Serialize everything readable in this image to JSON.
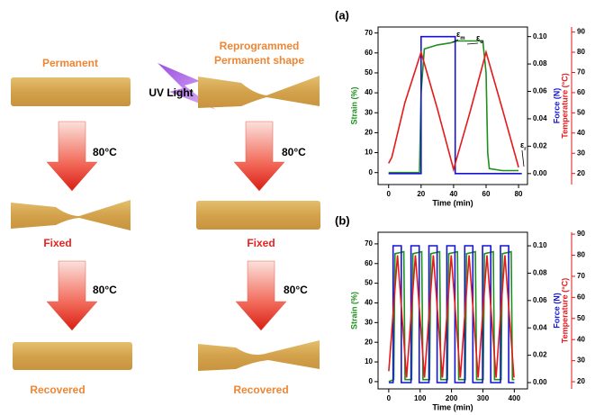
{
  "figure": {
    "permanent": "Permanent",
    "reprogrammed": [
      "Reprogrammed",
      "Permanent shape"
    ],
    "uv": "UV Light",
    "steps": [
      "80°C",
      "80°C",
      "80°C",
      "80°C"
    ],
    "fixed": [
      "Fixed",
      "Fixed"
    ],
    "recovered": [
      "Recovered",
      "Recovered"
    ]
  },
  "chart_data": [
    {
      "type": "line",
      "panel": "(a)",
      "xlabel": "Time (min)",
      "ylabel": "Strain (%)",
      "y2label": "Force (N)",
      "y3label": "Temperature (°C)",
      "xlim": [
        -6.5,
        85.5
      ],
      "xticks": [
        0,
        20,
        40,
        60,
        80
      ],
      "ylim": [
        -6,
        73
      ],
      "yticks": [
        0,
        10,
        20,
        30,
        40,
        50,
        60,
        70
      ],
      "y2lim": [
        -0.008,
        0.107
      ],
      "y2ticks": [
        {
          "value": 0,
          "label": "0.00"
        },
        {
          "value": 0.02,
          "label": "0.02"
        },
        {
          "value": 0.04,
          "label": "0.04"
        },
        {
          "value": 0.06,
          "label": "0.06"
        },
        {
          "value": 0.08,
          "label": "0.08"
        },
        {
          "value": 0.1,
          "label": "0.10"
        }
      ],
      "y3lim": [
        14.5,
        92.5
      ],
      "y3ticks": [
        20,
        30,
        40,
        50,
        60,
        70,
        80,
        90
      ],
      "series": [
        {
          "color": "#1f8f1f",
          "axis": "y",
          "x": [
            0,
            10,
            19,
            20,
            22,
            30,
            38,
            42,
            50,
            58,
            60,
            61,
            62,
            70,
            80
          ],
          "values": [
            0,
            0,
            0,
            40,
            62,
            64,
            65,
            66,
            66,
            66,
            50,
            10,
            2,
            1,
            1
          ]
        },
        {
          "color": "#1414d2",
          "axis": "y2",
          "x": [
            0,
            20,
            20,
            41,
            41,
            82
          ],
          "values": [
            0,
            0,
            0.1,
            0.1,
            0,
            0
          ]
        },
        {
          "color": "#e41a1a",
          "axis": "y3",
          "x": [
            0,
            2,
            10,
            20,
            30,
            40,
            50,
            60,
            70,
            80
          ],
          "values": [
            25,
            28,
            55,
            80,
            52,
            22,
            50,
            80,
            52,
            23
          ]
        }
      ],
      "annotations": [
        {
          "symbol": "ε",
          "sub": "m"
        },
        {
          "symbol": "ε",
          "sub": "u"
        },
        {
          "symbol": "ε",
          "sub": "r"
        }
      ]
    },
    {
      "type": "line",
      "panel": "(b)",
      "xlabel": "Time (min)",
      "ylabel": "Strain (%)",
      "y2label": "Force (N)",
      "y3label": "Temperature (°C)",
      "xlim": [
        -34,
        442
      ],
      "xticks": [
        0,
        100,
        200,
        300,
        400
      ],
      "ylim": [
        -3.7,
        75.9
      ],
      "yticks": [
        0,
        10,
        20,
        30,
        40,
        50,
        60,
        70
      ],
      "y2lim": [
        -0.0046,
        0.1099
      ],
      "y2ticks": [
        {
          "value": 0,
          "label": "0.00"
        },
        {
          "value": 0.02,
          "label": "0.02"
        },
        {
          "value": 0.04,
          "label": "0.04"
        },
        {
          "value": 0.06,
          "label": "0.06"
        },
        {
          "value": 0.08,
          "label": "0.08"
        },
        {
          "value": 0.1,
          "label": "0.10"
        }
      ],
      "y3lim": [
        16.6,
        90.9
      ],
      "y3ticks": [
        20,
        30,
        40,
        50,
        60,
        70,
        80,
        90
      ],
      "series": [
        {
          "color": "#1f8f1f",
          "axis": "y",
          "x": [
            0,
            16,
            20,
            48,
            52,
            73,
            77,
            105,
            109,
            130,
            134,
            162,
            166,
            187,
            191,
            219,
            223,
            244,
            248,
            276,
            280,
            301,
            305,
            333,
            337,
            358,
            362,
            390,
            394,
            400
          ],
          "values": [
            0,
            1,
            65,
            66,
            1,
            1,
            65,
            66,
            1,
            1,
            65,
            66,
            1,
            1,
            65,
            66,
            1,
            1,
            65,
            66,
            1,
            1,
            65,
            66,
            1,
            1,
            65,
            66,
            1,
            1
          ]
        },
        {
          "color": "#1414d2",
          "axis": "y2",
          "x": [
            0,
            14,
            14,
            40,
            40,
            71,
            71,
            97,
            97,
            128,
            128,
            154,
            154,
            185,
            185,
            211,
            211,
            242,
            242,
            268,
            268,
            299,
            299,
            325,
            325,
            356,
            356,
            382,
            382,
            400
          ],
          "values": [
            0,
            0,
            0.1,
            0.1,
            0,
            0,
            0.1,
            0.1,
            0,
            0,
            0.1,
            0.1,
            0,
            0,
            0.1,
            0.1,
            0,
            0,
            0.1,
            0.1,
            0,
            0,
            0.1,
            0.1,
            0,
            0,
            0.1,
            0.1,
            0,
            0
          ]
        },
        {
          "color": "#e41a1a",
          "axis": "y3",
          "x": [
            0,
            28,
            57,
            85,
            114,
            142,
            171,
            199,
            228,
            256,
            285,
            313,
            342,
            370,
            399
          ],
          "values": [
            25,
            80,
            22,
            80,
            22,
            80,
            22,
            80,
            22,
            80,
            22,
            80,
            22,
            80,
            22
          ]
        }
      ]
    }
  ]
}
